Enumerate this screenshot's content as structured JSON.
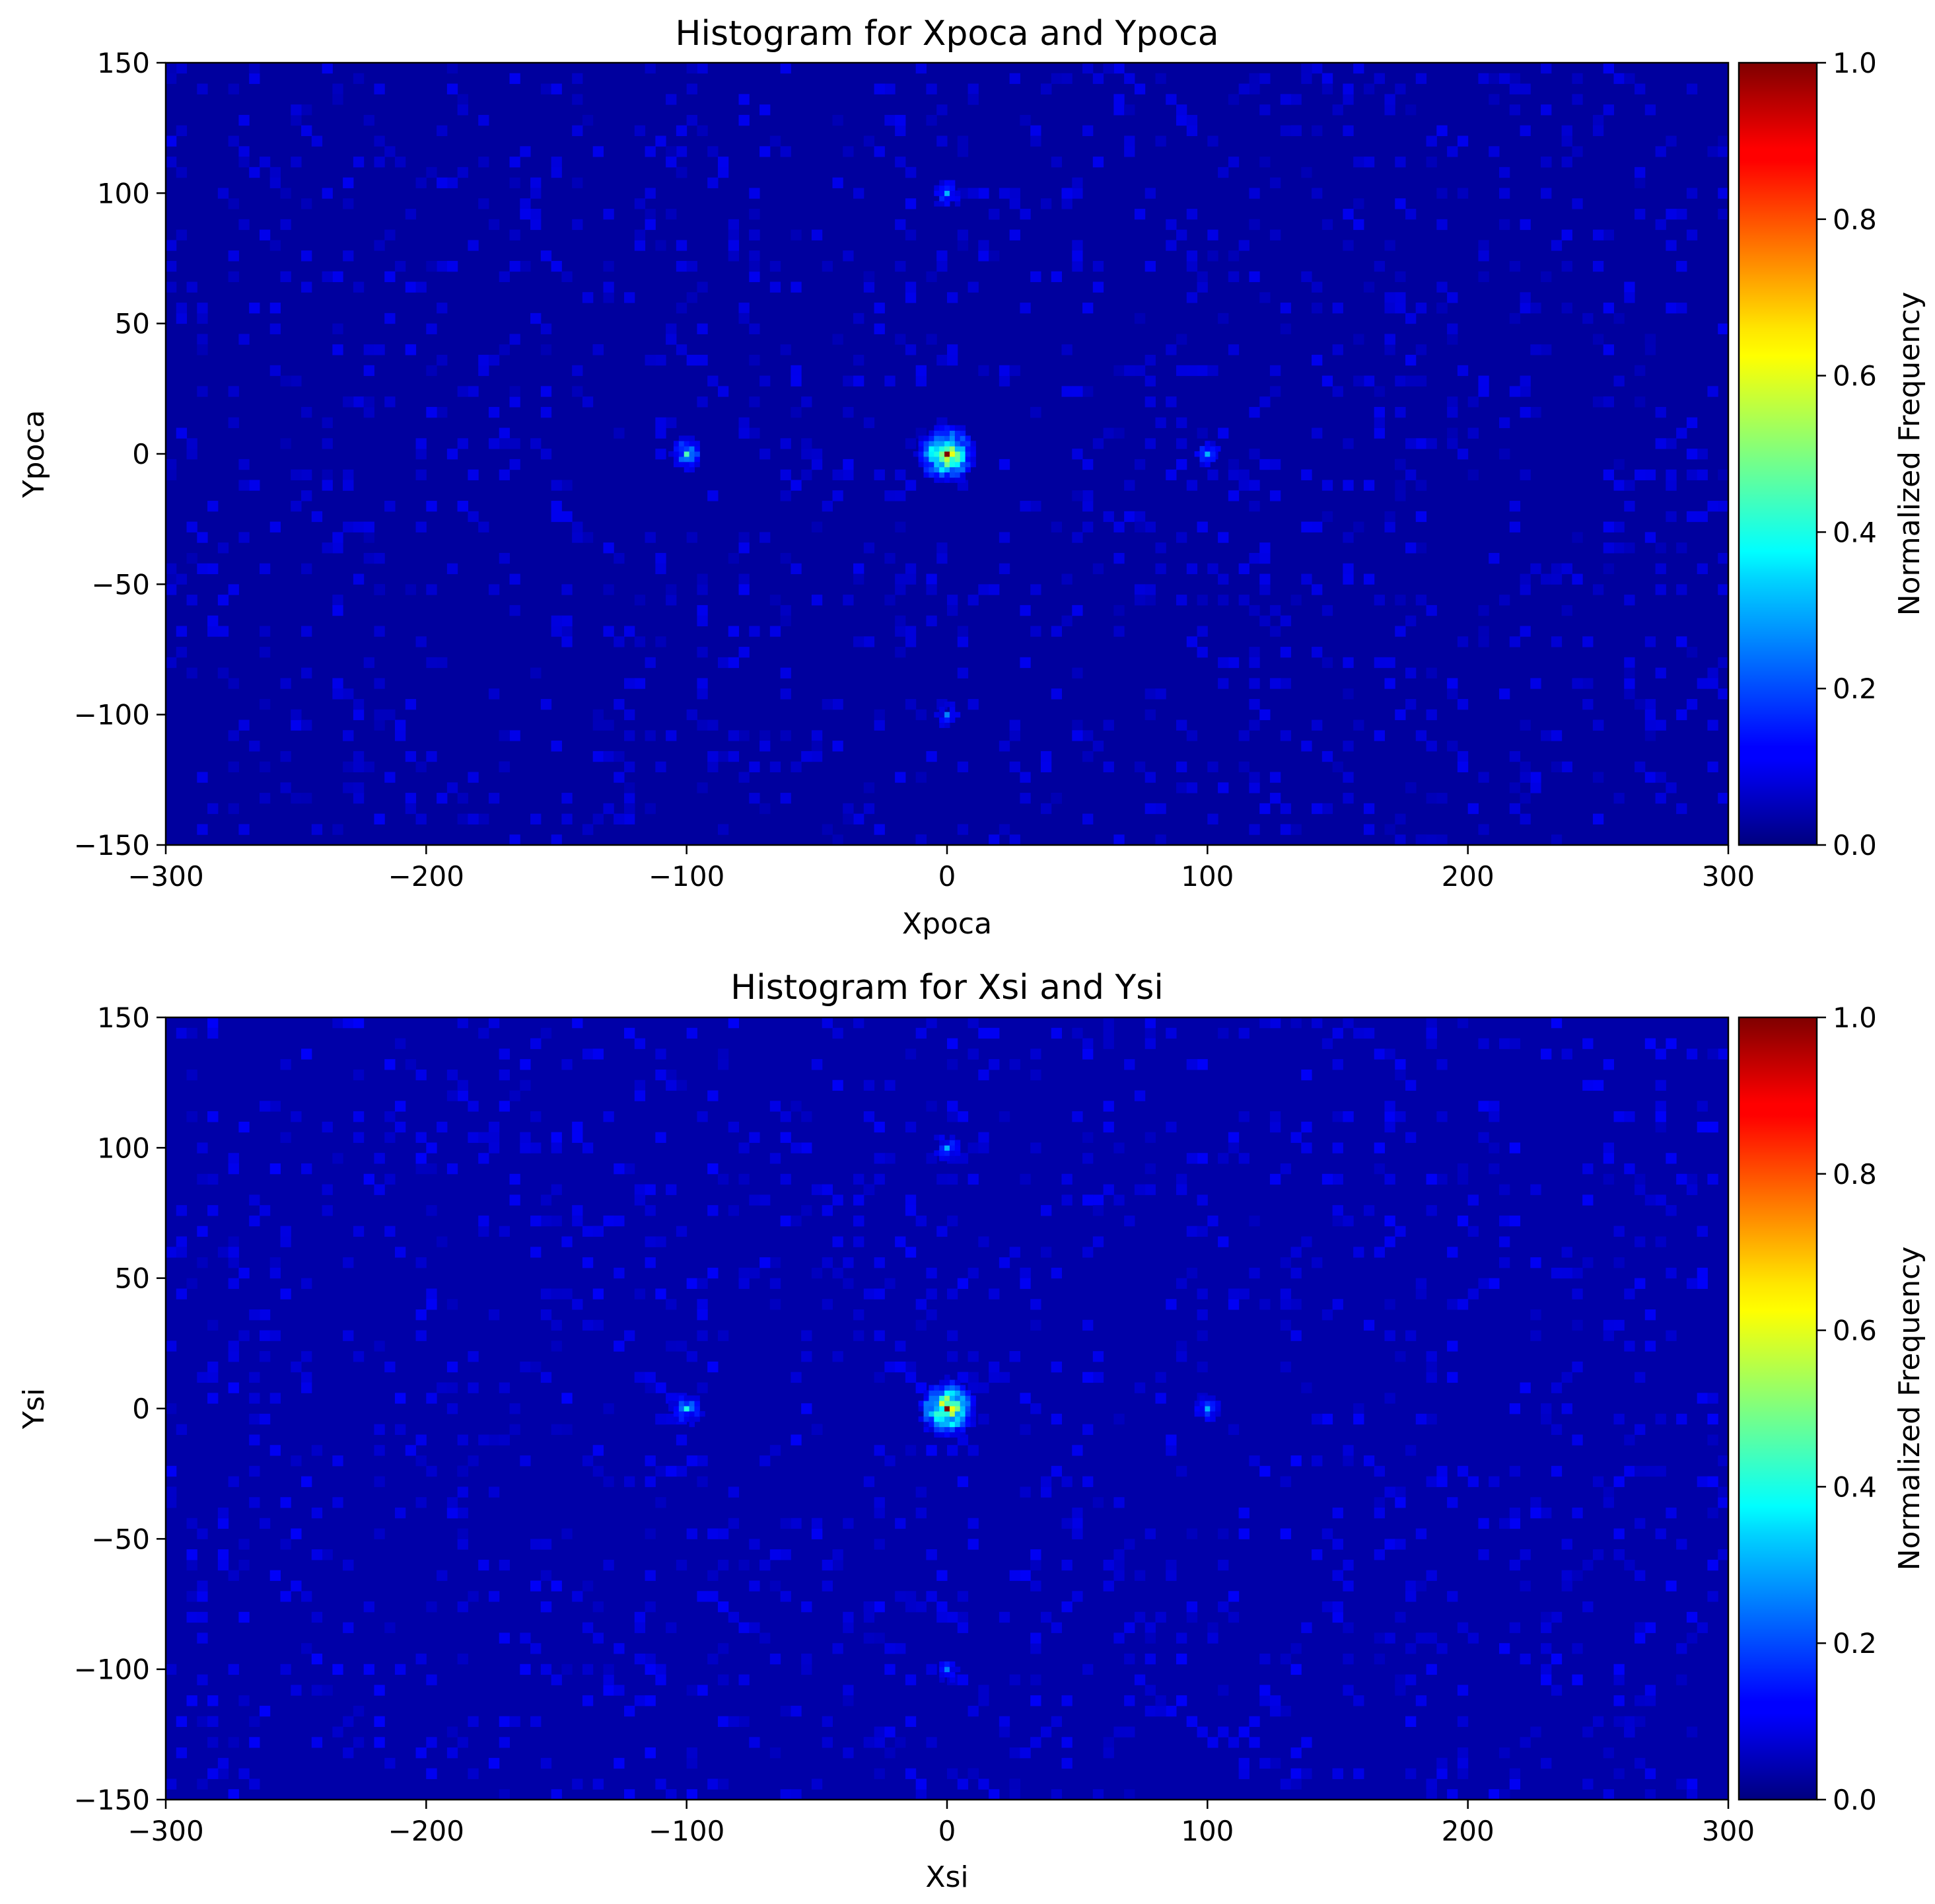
{
  "colorbar": {
    "label": "Normalized Frequency",
    "colormap": "jet",
    "ticks": [
      "0.0",
      "0.2",
      "0.4",
      "0.6",
      "0.8",
      "1.0"
    ],
    "range": [
      0,
      1
    ]
  },
  "chart_data": [
    {
      "type": "heatmap",
      "title": "Histogram for Xpoca and Ypoca",
      "xlabel": "Xpoca",
      "ylabel": "Ypoca",
      "xlim": [
        -300,
        300
      ],
      "ylim": [
        -150,
        150
      ],
      "xticks": [
        -300,
        -200,
        -100,
        0,
        100,
        200,
        300
      ],
      "xtick_labels": [
        "−300",
        "−200",
        "−100",
        "0",
        "100",
        "200",
        "300"
      ],
      "yticks": [
        -150,
        -100,
        -50,
        0,
        50,
        100,
        150
      ],
      "ytick_labels": [
        "−150",
        "−100",
        "−50",
        "0",
        "50",
        "100",
        "150"
      ],
      "colorbar_label": "Normalized Frequency",
      "clusters": [
        {
          "x": 0,
          "y": 0,
          "peak": 1.0
        },
        {
          "x": -100,
          "y": 0,
          "peak": 0.45
        },
        {
          "x": 100,
          "y": 0,
          "peak": 0.3
        },
        {
          "x": 0,
          "y": 100,
          "peak": 0.3
        },
        {
          "x": 0,
          "y": -100,
          "peak": 0.25
        }
      ],
      "background_level": 0.03
    },
    {
      "type": "heatmap",
      "title": "Histogram for Xsi and Ysi",
      "xlabel": "Xsi",
      "ylabel": "Ysi",
      "xlim": [
        -300,
        300
      ],
      "ylim": [
        -150,
        150
      ],
      "xticks": [
        -300,
        -200,
        -100,
        0,
        100,
        200,
        300
      ],
      "xtick_labels": [
        "−300",
        "−200",
        "−100",
        "0",
        "100",
        "200",
        "300"
      ],
      "yticks": [
        -150,
        -100,
        -50,
        0,
        50,
        100,
        150
      ],
      "ytick_labels": [
        "−150",
        "−100",
        "−50",
        "0",
        "50",
        "100",
        "150"
      ],
      "colorbar_label": "Normalized Frequency",
      "clusters": [
        {
          "x": 0,
          "y": 0,
          "peak": 1.0
        },
        {
          "x": -100,
          "y": 0,
          "peak": 0.4
        },
        {
          "x": 100,
          "y": 0,
          "peak": 0.3
        },
        {
          "x": 0,
          "y": 100,
          "peak": 0.3
        },
        {
          "x": 0,
          "y": -100,
          "peak": 0.25
        }
      ],
      "background_level": 0.04
    }
  ]
}
